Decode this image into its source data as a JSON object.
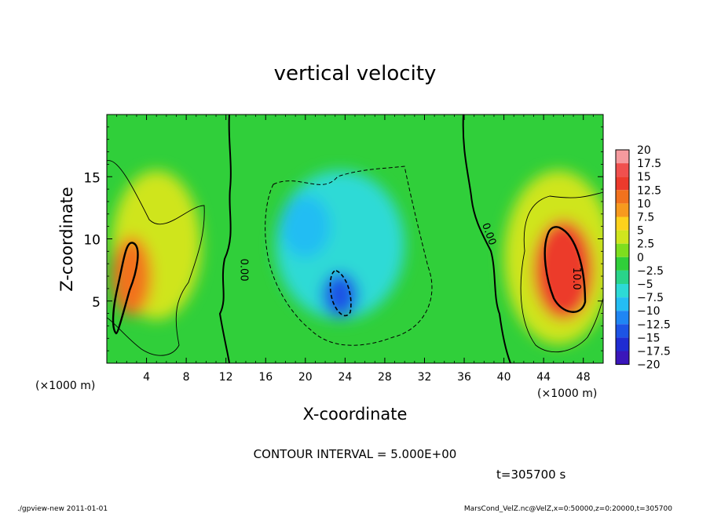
{
  "chart_data": {
    "type": "heatmap",
    "title": "vertical velocity",
    "xlabel": "X-coordinate",
    "ylabel": "Z-coordinate",
    "x_unit_left": "(×1000 m)",
    "x_unit_right": "(×1000 m)",
    "xlim": [
      0,
      50
    ],
    "ylim": [
      0,
      20
    ],
    "x_ticks": [
      4,
      8,
      12,
      16,
      20,
      24,
      28,
      32,
      36,
      40,
      44,
      48
    ],
    "y_ticks": [
      5,
      10,
      15
    ],
    "contour_interval_text": "CONTOUR INTERVAL = 5.000E+00",
    "time_text": "t=305700 s",
    "contour_labels": [
      {
        "text": "0.00",
        "x": 13.5,
        "z": 7.5,
        "rotate": 90
      },
      {
        "text": "0.00",
        "x": 38.2,
        "z": 10.3,
        "rotate": 70
      },
      {
        "text": "10.0",
        "x": 47.0,
        "z": 6.8,
        "rotate": 90
      }
    ],
    "colorbar": {
      "labels": [
        "20",
        "17.5",
        "15",
        "12.5",
        "10",
        "7.5",
        "5",
        "2.5",
        "0",
        "−2.5",
        "−5",
        "−7.5",
        "−10",
        "−12.5",
        "−15",
        "−17.5",
        "−20"
      ],
      "colors": [
        "#f59a9e",
        "#f0504e",
        "#ec3a2c",
        "#f2721e",
        "#f79a1e",
        "#fdd21c",
        "#cfe51e",
        "#7ede1e",
        "#30cf3a",
        "#29d48a",
        "#2ddad6",
        "#24bdf3",
        "#1f86f3",
        "#1d54e5",
        "#1f2cd2",
        "#3a16ba",
        "#6a14b8"
      ]
    },
    "field_blobs": [
      {
        "x": 2.5,
        "z": 7.0,
        "rx": 2.0,
        "rz": 3.2,
        "value": 13.5
      },
      {
        "x": 5.0,
        "z": 9.5,
        "rx": 4.5,
        "rz": 6.0,
        "value": 5
      },
      {
        "x": 46.0,
        "z": 7.5,
        "rx": 3.0,
        "rz": 4.0,
        "value": 14
      },
      {
        "x": 45.5,
        "z": 8.5,
        "rx": 5.5,
        "rz": 7.0,
        "value": 5
      },
      {
        "x": 23.5,
        "z": 9.5,
        "rx": 6.5,
        "rz": 6.0,
        "value": -6
      },
      {
        "x": 23.5,
        "z": 5.5,
        "rx": 1.8,
        "rz": 1.8,
        "value": -12.5
      },
      {
        "x": 20.0,
        "z": 11.0,
        "rx": 2.5,
        "rz": 2.5,
        "value": -8
      }
    ]
  },
  "footer": {
    "left": "./gpview-new  2011-01-01",
    "right": "MarsCond_VelZ.nc@VelZ,x=0:50000,z=0:20000,t=305700"
  }
}
